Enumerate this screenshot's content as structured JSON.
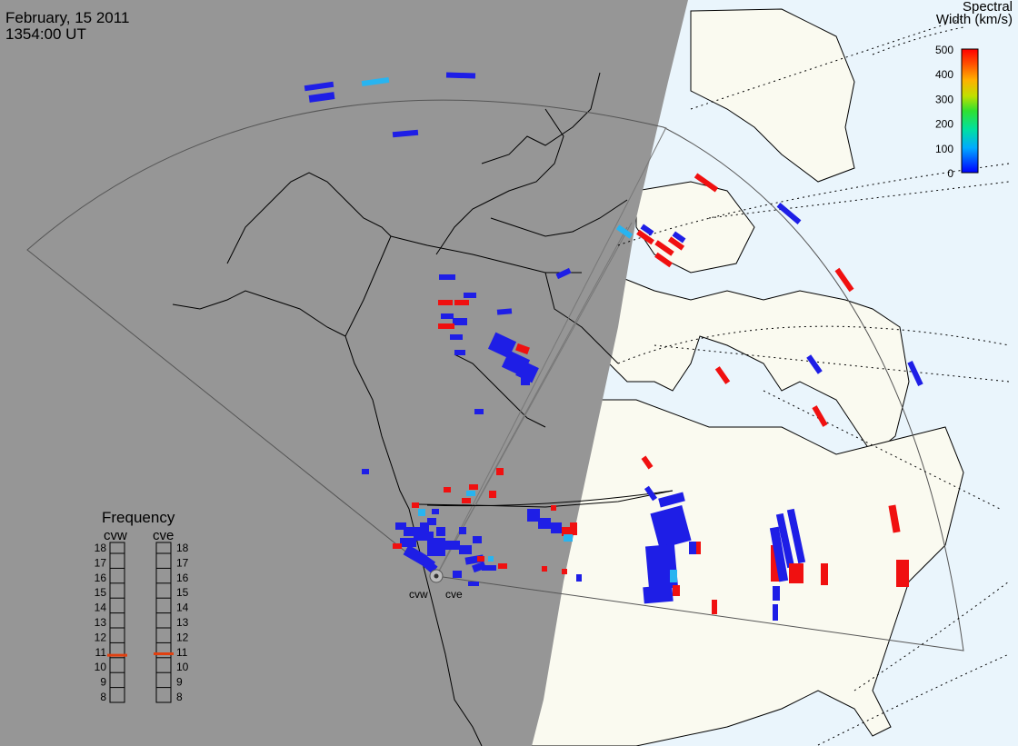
{
  "header": {
    "date": "February, 15 2011",
    "time": "1354:00 UT"
  },
  "colorbar": {
    "title_line1": "Spectral",
    "title_line2": "Width (km/s)",
    "ticks": [
      "500",
      "400",
      "300",
      "200",
      "100",
      "0"
    ],
    "range": [
      0,
      500
    ]
  },
  "frequency_panel": {
    "title": "Frequency",
    "radars": [
      {
        "label": "cvw",
        "freq_mhz": 10.8,
        "indicator_color": "#e04010"
      },
      {
        "label": "cve",
        "freq_mhz": 10.9,
        "indicator_color": "#e04010"
      }
    ],
    "scale_labels": [
      "18",
      "17",
      "16",
      "15",
      "14",
      "13",
      "12",
      "11",
      "10",
      "9",
      "8"
    ]
  },
  "radar_sites": {
    "west_label": "cvw",
    "east_label": "cve"
  },
  "colors": {
    "night": "#969696",
    "day_land": "#fafaf0",
    "day_ocean": "#eaf5fc",
    "low_width": "#1e1ee6",
    "mid_width": "#28b4f0",
    "high_width": "#f01010"
  }
}
